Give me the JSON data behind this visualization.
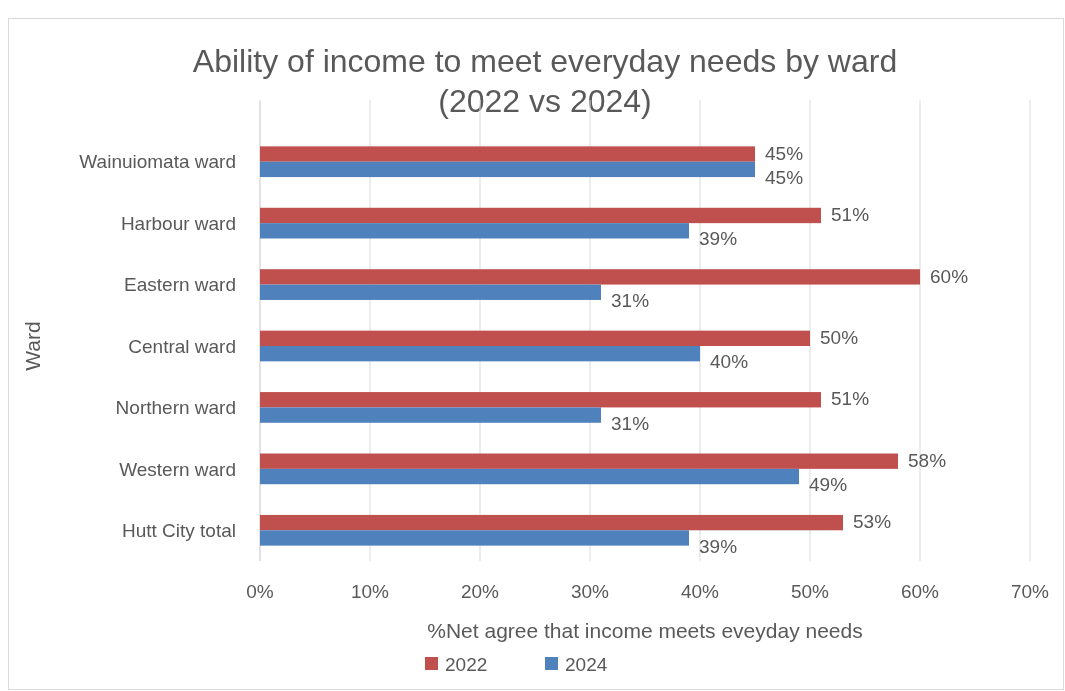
{
  "chart_data": {
    "type": "bar",
    "orientation": "horizontal",
    "title": "Ability of income to meet everyday needs by ward (2022 vs 2024)",
    "xlabel": "%Net agree that income meets eveyday needs",
    "ylabel": "Ward",
    "categories": [
      "Wainuiomata ward",
      "Harbour ward",
      "Eastern ward",
      "Central ward",
      "Northern ward",
      "Western ward",
      "Hutt City total"
    ],
    "series": [
      {
        "name": "2022",
        "color": "#c0504d",
        "values": [
          45,
          51,
          60,
          50,
          51,
          58,
          53
        ],
        "value_labels": [
          "45%",
          "51%",
          "60%",
          "50%",
          "51%",
          "58%",
          "53%"
        ]
      },
      {
        "name": "2024",
        "color": "#4f81bd",
        "values": [
          45,
          39,
          31,
          40,
          31,
          49,
          39
        ],
        "value_labels": [
          "45%",
          "39%",
          "31%",
          "40%",
          "31%",
          "49%",
          "39%"
        ]
      }
    ],
    "xlim": [
      0,
      70
    ],
    "xticks": [
      {
        "value": 0,
        "label": "0%"
      },
      {
        "value": 10,
        "label": "10%"
      },
      {
        "value": 20,
        "label": "20%"
      },
      {
        "value": 30,
        "label": "30%"
      },
      {
        "value": 40,
        "label": "40%"
      },
      {
        "value": 50,
        "label": "50%"
      },
      {
        "value": 60,
        "label": "60%"
      },
      {
        "value": 70,
        "label": "70%"
      }
    ],
    "grid": "x",
    "legend": "bottom"
  }
}
